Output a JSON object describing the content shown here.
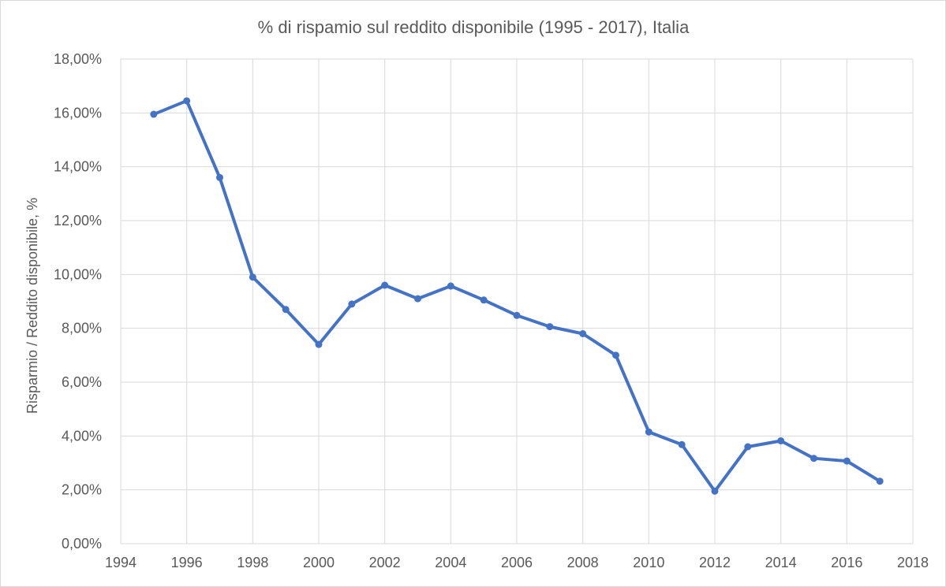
{
  "chart_data": {
    "type": "line",
    "title": "% di rispamio sul reddito disponibile (1995 - 2017), Italia",
    "xlabel": "",
    "ylabel": "Risparmio / Reddito disponibile, %",
    "xlim": [
      1994,
      2018
    ],
    "ylim": [
      0,
      18
    ],
    "x_ticks": [
      "1994",
      "1996",
      "1998",
      "2000",
      "2002",
      "2004",
      "2006",
      "2008",
      "2010",
      "2012",
      "2014",
      "2016",
      "2018"
    ],
    "y_ticks": [
      "0,00%",
      "2,00%",
      "4,00%",
      "6,00%",
      "8,00%",
      "10,00%",
      "12,00%",
      "14,00%",
      "16,00%",
      "18,00%"
    ],
    "x_tick_values": [
      1994,
      1996,
      1998,
      2000,
      2002,
      2004,
      2006,
      2008,
      2010,
      2012,
      2014,
      2016,
      2018
    ],
    "y_tick_values": [
      0,
      2,
      4,
      6,
      8,
      10,
      12,
      14,
      16,
      18
    ],
    "grid": true,
    "legend": "none",
    "series": [
      {
        "color": "#4472c4",
        "x": [
          1995,
          1996,
          1997,
          1998,
          1999,
          2000,
          2001,
          2002,
          2003,
          2004,
          2005,
          2006,
          2007,
          2008,
          2009,
          2010,
          2011,
          2012,
          2013,
          2014,
          2015,
          2016,
          2017
        ],
        "values": [
          15.95,
          16.45,
          13.6,
          9.9,
          8.7,
          7.4,
          8.9,
          9.6,
          9.1,
          9.57,
          9.05,
          8.48,
          8.06,
          7.8,
          7.0,
          4.15,
          3.68,
          1.95,
          3.6,
          3.82,
          3.17,
          3.07,
          2.32
        ]
      }
    ]
  }
}
